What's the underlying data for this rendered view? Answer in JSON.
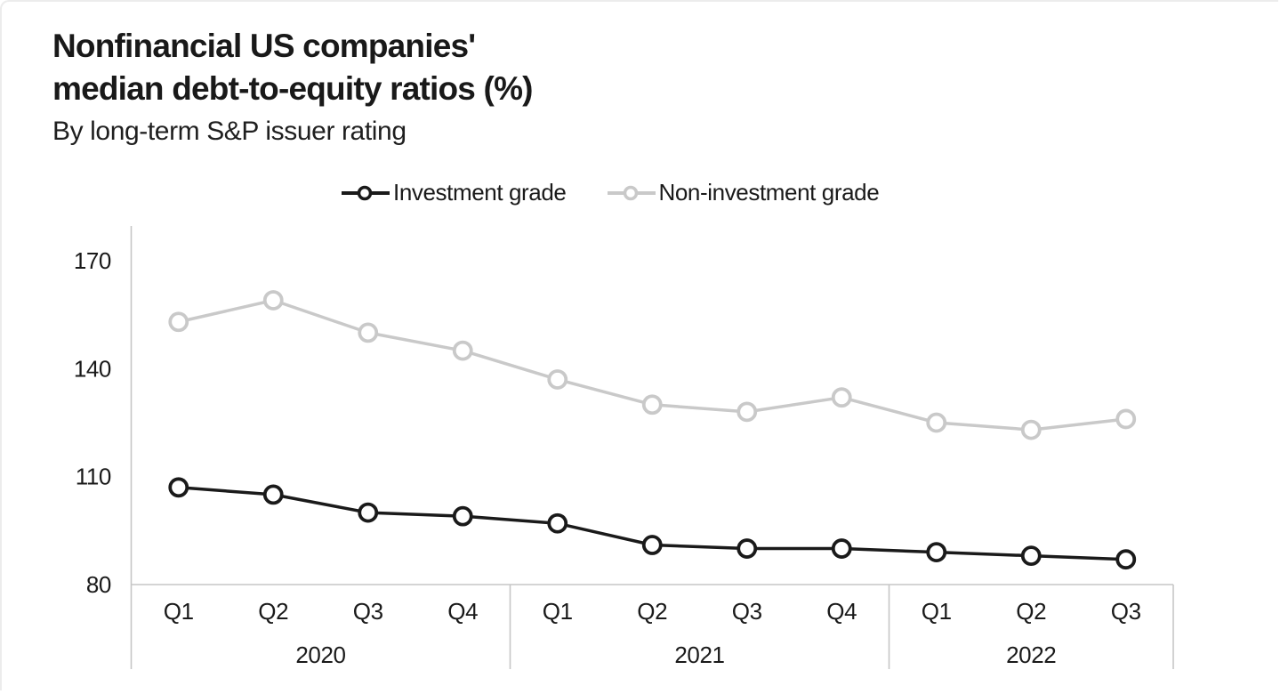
{
  "header": {
    "title_line1": "Nonfinancial US companies'",
    "title_line2": "median debt-to-equity ratios (%)",
    "subtitle": "By long-term S&P issuer rating"
  },
  "legend": {
    "items": [
      {
        "label": "Investment grade",
        "color": "#1a1a1a"
      },
      {
        "label": "Non-investment grade",
        "color": "#c9c9c9"
      }
    ]
  },
  "chart_data": {
    "type": "line",
    "title": "Nonfinancial US companies' median debt-to-equity ratios (%)",
    "subtitle": "By long-term S&P issuer rating",
    "x_quarters": [
      "Q1",
      "Q2",
      "Q3",
      "Q4",
      "Q1",
      "Q2",
      "Q3",
      "Q4",
      "Q1",
      "Q2",
      "Q3"
    ],
    "year_groups": [
      {
        "label": "2020",
        "quarters": 4
      },
      {
        "label": "2021",
        "quarters": 4
      },
      {
        "label": "2022",
        "quarters": 3
      }
    ],
    "series": [
      {
        "name": "Investment grade",
        "color": "#1a1a1a",
        "values": [
          107,
          105,
          100,
          99,
          97,
          91,
          90,
          90,
          89,
          88,
          87
        ]
      },
      {
        "name": "Non-investment grade",
        "color": "#c9c9c9",
        "values": [
          153,
          159,
          150,
          145,
          137,
          130,
          128,
          132,
          125,
          123,
          126
        ]
      }
    ],
    "ylim": [
      80,
      170
    ],
    "yticks": [
      80,
      110,
      140,
      170
    ],
    "grid": false,
    "marker": "open-circle",
    "legend_position": "top",
    "axis_color": "#c6c6c6",
    "text_color": "#1a1a1a"
  }
}
